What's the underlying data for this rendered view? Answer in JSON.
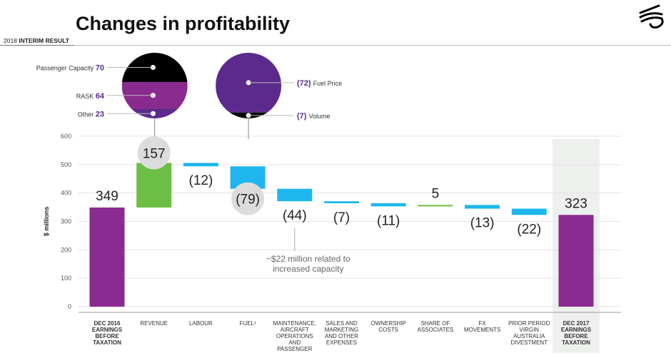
{
  "header": {
    "title": "Changes in profitability",
    "subtitle_year": "2018",
    "subtitle_text": "INTERIM RESULT"
  },
  "colors": {
    "purple": "#8b2a90",
    "green": "#6cbf44",
    "blue": "#1fb6ee",
    "black": "#000000",
    "dark_purple": "#5c2a8c",
    "magenta": "#8a2a8e",
    "bubble_grey": "#dcdcdc",
    "highlight_column": "#eef0ee"
  },
  "chart_data": {
    "type": "waterfall",
    "ylabel": "$ millions",
    "ylim": [
      0,
      600
    ],
    "yticks": [
      0,
      100,
      200,
      300,
      400,
      500,
      600
    ],
    "grid": true,
    "steps": [
      {
        "category": [
          "DEC 2016",
          "EARNINGS",
          "BEFORE",
          "TAXATION"
        ],
        "bold": true,
        "kind": "total",
        "value": 349,
        "label": "349",
        "label_pos": "above"
      },
      {
        "category": [
          "REVENUE"
        ],
        "bold": false,
        "kind": "increase",
        "value": 157,
        "label": "157",
        "label_pos": "bubble"
      },
      {
        "category": [
          "LABOUR"
        ],
        "bold": false,
        "kind": "decrease",
        "value": -12,
        "label": "(12)",
        "label_pos": "below"
      },
      {
        "category": [
          "FUEL¹"
        ],
        "bold": false,
        "kind": "decrease",
        "value": -79,
        "label": "(79)",
        "label_pos": "bubble"
      },
      {
        "category": [
          "MAINTENANCE,",
          "AIRCRAFT",
          "OPERATIONS",
          "AND",
          "PASSENGER"
        ],
        "bold": false,
        "kind": "decrease",
        "value": -44,
        "label": "(44)",
        "label_pos": "below"
      },
      {
        "category": [
          "SALES AND",
          "MARKETING",
          "AND OTHER",
          "EXPENSES"
        ],
        "bold": false,
        "kind": "decrease",
        "value": -7,
        "label": "(7)",
        "label_pos": "below"
      },
      {
        "category": [
          "OWNERSHIP",
          "COSTS"
        ],
        "bold": false,
        "kind": "decrease",
        "value": -11,
        "label": "(11)",
        "label_pos": "below"
      },
      {
        "category": [
          "SHARE OF",
          "ASSOCIATES"
        ],
        "bold": false,
        "kind": "increase",
        "value": 5,
        "label": "5",
        "label_pos": "above"
      },
      {
        "category": [
          "FX",
          "MOVEMENTS"
        ],
        "bold": false,
        "kind": "decrease",
        "value": -13,
        "label": "(13)",
        "label_pos": "below"
      },
      {
        "category": [
          "PRIOR PERIOD",
          "VIRGIN",
          "AUSTRALIA",
          "DIVESTMENT"
        ],
        "bold": false,
        "kind": "decrease",
        "value": -22,
        "label": "(22)",
        "label_pos": "below"
      },
      {
        "category": [
          "DEC 2017",
          "EARNINGS",
          "BEFORE",
          "TAXATION"
        ],
        "bold": true,
        "kind": "total",
        "value": 323,
        "label": "323",
        "label_pos": "above",
        "highlight": true
      }
    ],
    "annotations": [
      {
        "text": [
          "~$22 million related to",
          "increased capacity"
        ],
        "step": 4
      }
    ],
    "breakdowns": [
      {
        "step": 1,
        "slices": [
          {
            "name": "Passenger Capacity",
            "value": 70,
            "color": "#000000"
          },
          {
            "name": "RASK",
            "value": 64,
            "color": "#8a2a8e"
          },
          {
            "name": "Other",
            "value": 23,
            "color": "#5c2a8c"
          }
        ],
        "label_side": "left",
        "value_format": "plain"
      },
      {
        "step": 3,
        "slices": [
          {
            "name": "Fuel Price",
            "value": -72,
            "color": "#5c2a8c"
          },
          {
            "name": "Volume",
            "value": -7,
            "color": "#000000"
          }
        ],
        "label_side": "right",
        "value_format": "paren"
      }
    ]
  }
}
